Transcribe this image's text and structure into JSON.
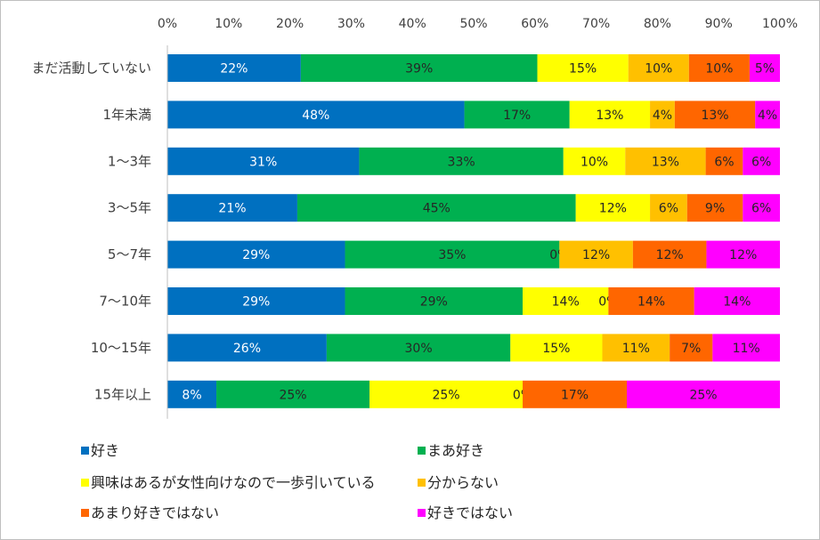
{
  "chart_data": {
    "type": "bar",
    "orientation": "horizontal",
    "stacked": true,
    "percent_axis": true,
    "xlim": [
      0,
      100
    ],
    "x_ticks": [
      "0%",
      "10%",
      "20%",
      "30%",
      "40%",
      "50%",
      "60%",
      "70%",
      "80%",
      "90%",
      "100%"
    ],
    "xaxis_position": "top",
    "grid": false,
    "legend_position": "bottom",
    "categories": [
      "まだ活動していない",
      "1年未満",
      "1～3年",
      "3～5年",
      "5～7年",
      "7～10年",
      "10～15年",
      "15年以上"
    ],
    "series": [
      {
        "name": "好き",
        "color": "#0070c0",
        "label_color": "#ffffff",
        "values": [
          22,
          48,
          31,
          21,
          29,
          29,
          26,
          8
        ],
        "labels": [
          "22%",
          "48%",
          "31%",
          "21%",
          "29%",
          "29%",
          "26%",
          "8%"
        ]
      },
      {
        "name": "まあ好き",
        "color": "#00b050",
        "label_color": "#262626",
        "values": [
          39,
          17,
          33,
          45,
          35,
          29,
          30,
          25
        ],
        "labels": [
          "39%",
          "17%",
          "33%",
          "45%",
          "35%",
          "29%",
          "30%",
          "25%"
        ]
      },
      {
        "name": "興味はあるが女性向けなので一歩引いている",
        "color": "#ffff00",
        "label_color": "#262626",
        "values": [
          15,
          13,
          10,
          12,
          0,
          14,
          15,
          25
        ],
        "labels": [
          "15%",
          "13%",
          "10%",
          "12%",
          "0%",
          "14%",
          "15%",
          "25%"
        ]
      },
      {
        "name": "分からない",
        "color": "#ffc000",
        "label_color": "#262626",
        "values": [
          10,
          4,
          13,
          6,
          12,
          0,
          11,
          0
        ],
        "labels": [
          "10%",
          "4%",
          "13%",
          "6%",
          "12%",
          "0%",
          "11%",
          "0%"
        ]
      },
      {
        "name": "あまり好きではない",
        "color": "#ff6600",
        "label_color": "#262626",
        "values": [
          10,
          13,
          6,
          9,
          12,
          14,
          7,
          17
        ],
        "labels": [
          "10%",
          "13%",
          "6%",
          "9%",
          "12%",
          "14%",
          "7%",
          "17%"
        ]
      },
      {
        "name": "好きではない",
        "color": "#ff00ff",
        "label_color": "#262626",
        "values": [
          5,
          4,
          6,
          6,
          12,
          14,
          11,
          25
        ],
        "labels": [
          "5%",
          "4%",
          "6%",
          "6%",
          "12%",
          "14%",
          "11%",
          "25%"
        ]
      }
    ]
  }
}
